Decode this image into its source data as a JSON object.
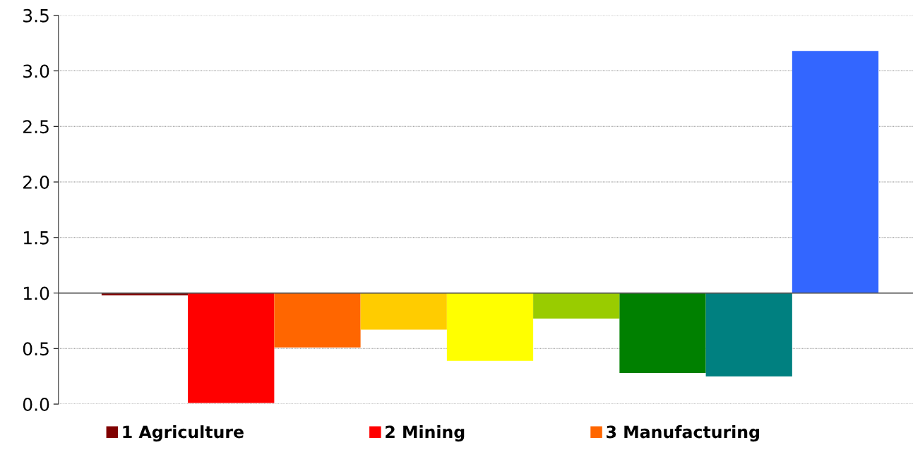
{
  "chart_data": {
    "type": "bar",
    "categories": [
      null,
      null,
      null,
      null,
      null,
      null,
      null,
      null,
      null
    ],
    "series": [
      {
        "name": "1 Agriculture",
        "color": "#800000",
        "values": [
          -0.02,
          null,
          null,
          null,
          null,
          null,
          null,
          null,
          null
        ],
        "base": [
          1,
          null,
          null,
          null,
          null,
          null,
          null,
          null,
          null
        ]
      },
      {
        "name": "2 Mining",
        "color": "#ff0000",
        "values": [
          null,
          -0.99,
          null,
          null,
          null,
          null,
          null,
          null,
          null
        ],
        "base": [
          null,
          1,
          null,
          null,
          null,
          null,
          null,
          null,
          null
        ]
      },
      {
        "name": "3 Manufacturing",
        "color": "#ff6600",
        "values": [
          null,
          null,
          -0.49,
          null,
          null,
          null,
          null,
          null,
          null
        ],
        "base": [
          null,
          null,
          1,
          null,
          null,
          null,
          null,
          null,
          null
        ]
      },
      {
        "color": "#ffcc00",
        "values": [
          null,
          null,
          null,
          -0.33,
          null,
          null,
          null,
          null,
          null
        ],
        "base": [
          null,
          null,
          null,
          1,
          null,
          null,
          null,
          null,
          null
        ]
      },
      {
        "color": "#ffff00",
        "values": [
          null,
          null,
          null,
          null,
          -0.61,
          null,
          null,
          null,
          null
        ],
        "base": [
          null,
          null,
          null,
          null,
          1,
          null,
          null,
          null,
          null
        ]
      },
      {
        "color": "#99cc00",
        "values": [
          null,
          null,
          null,
          null,
          null,
          -0.23,
          null,
          null,
          null
        ],
        "base": [
          null,
          null,
          null,
          null,
          null,
          1,
          null,
          null,
          null
        ]
      },
      {
        "color": "#008000",
        "values": [
          null,
          null,
          null,
          null,
          null,
          null,
          -0.72,
          null,
          null
        ],
        "base": [
          null,
          null,
          null,
          null,
          null,
          null,
          1,
          null,
          null
        ]
      },
      {
        "color": "#008080",
        "values": [
          null,
          null,
          null,
          null,
          null,
          null,
          null,
          -0.75,
          null
        ],
        "base": [
          null,
          null,
          null,
          null,
          null,
          null,
          null,
          1,
          null
        ]
      },
      {
        "color": "#3366ff",
        "values": [
          null,
          null,
          null,
          null,
          null,
          null,
          null,
          null,
          2.18
        ],
        "base": [
          null,
          null,
          null,
          null,
          null,
          null,
          null,
          null,
          1
        ]
      }
    ],
    "ylim": [
      0,
      3.5
    ],
    "yticks": [
      {
        "value": 0,
        "label": "0.0"
      },
      {
        "value": 0.5,
        "label": "0.5"
      },
      {
        "value": 1,
        "label": "1.0"
      },
      {
        "value": 1.5,
        "label": "1.5"
      },
      {
        "value": 2,
        "label": "2.0"
      },
      {
        "value": 2.5,
        "label": "2.5"
      },
      {
        "value": 3,
        "label": "3.0"
      },
      {
        "value": 3.5,
        "label": "3.5"
      }
    ],
    "ref_lines": [
      {
        "axis": "y",
        "value": 1,
        "color": "#555555"
      }
    ],
    "grid": "y",
    "legend": "bottom"
  }
}
